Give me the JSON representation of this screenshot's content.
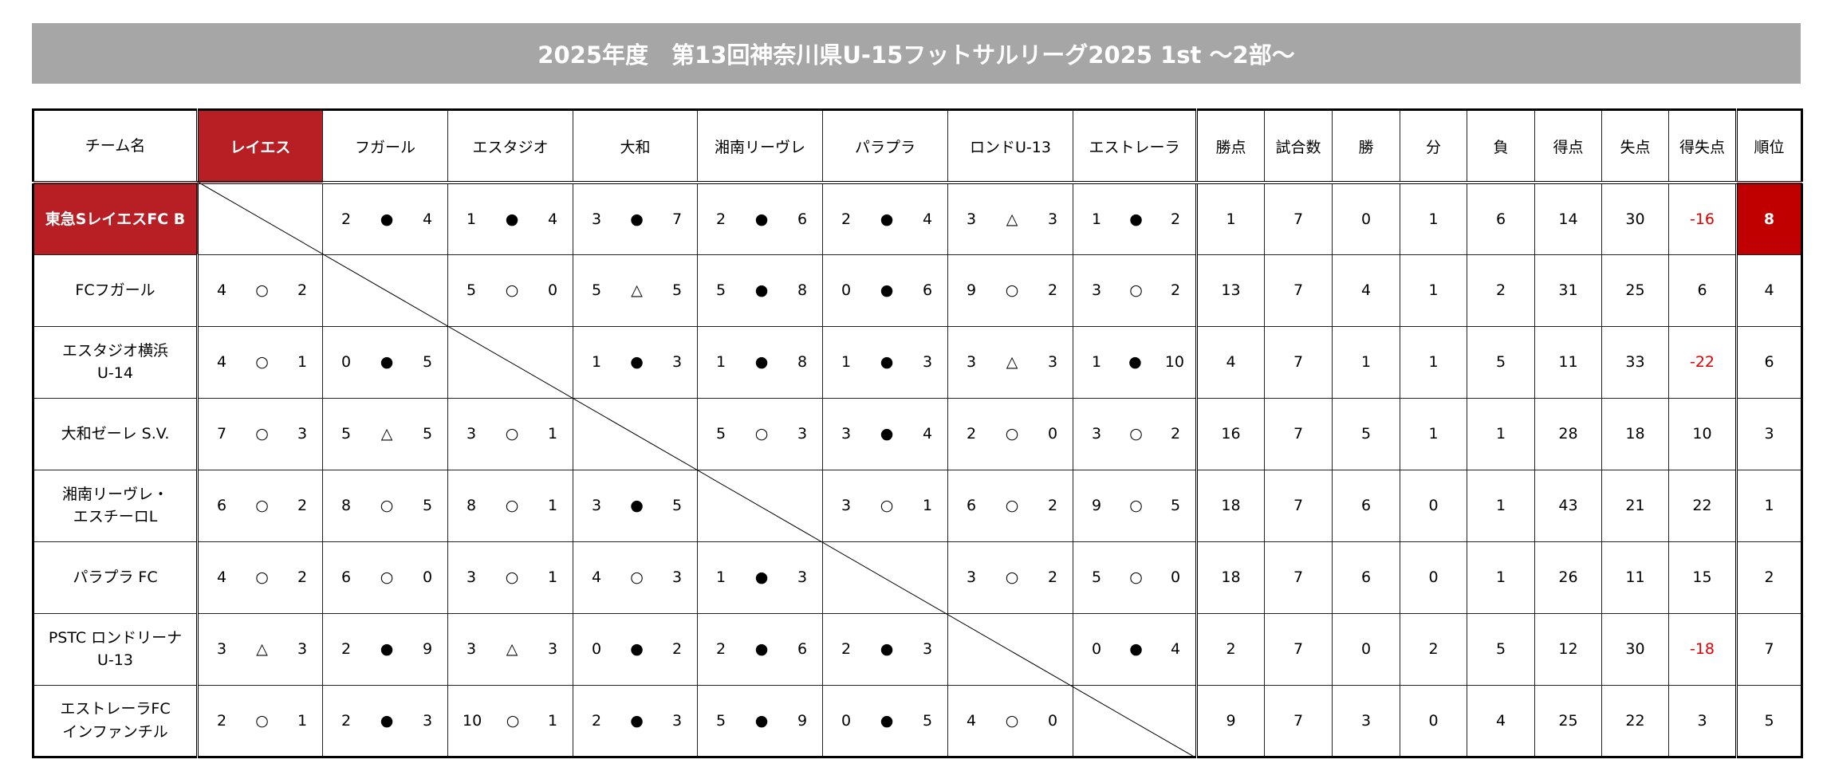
{
  "title": "2025年度　第13回神奈川県U-15フットサルリーグ2025 1st ～2部～",
  "header": {
    "team_label": "チーム名",
    "opponents": [
      "レイエス",
      "フガール",
      "エスタジオ",
      "大和",
      "湘南リーヴレ",
      "パラプラ",
      "ロンドU-13",
      "エストレーラ"
    ],
    "stats": [
      "勝点",
      "試合数",
      "勝",
      "分",
      "負",
      "得点",
      "失点",
      "得失点",
      "順位"
    ]
  },
  "colors": {
    "highlight": "#b81f24",
    "rank_highlight": "#c00000",
    "negative": "#e00000",
    "title_bar": "#a6a6a6"
  },
  "rows": [
    {
      "team": [
        "東急SレイエスFC B"
      ],
      "highlight": true,
      "results": [
        null,
        [
          "2",
          "●",
          "4"
        ],
        [
          "1",
          "●",
          "4"
        ],
        [
          "3",
          "●",
          "7"
        ],
        [
          "2",
          "●",
          "6"
        ],
        [
          "2",
          "●",
          "4"
        ],
        [
          "3",
          "△",
          "3"
        ],
        [
          "1",
          "●",
          "2"
        ]
      ],
      "stats": [
        "1",
        "7",
        "0",
        "1",
        "6",
        "14",
        "30",
        "-16",
        "8"
      ]
    },
    {
      "team": [
        "FCフガール"
      ],
      "results": [
        [
          "4",
          "○",
          "2"
        ],
        null,
        [
          "5",
          "○",
          "0"
        ],
        [
          "5",
          "△",
          "5"
        ],
        [
          "5",
          "●",
          "8"
        ],
        [
          "0",
          "●",
          "6"
        ],
        [
          "9",
          "○",
          "2"
        ],
        [
          "3",
          "○",
          "2"
        ]
      ],
      "stats": [
        "13",
        "7",
        "4",
        "1",
        "2",
        "31",
        "25",
        "6",
        "4"
      ]
    },
    {
      "team": [
        "エスタジオ横浜",
        "U-14"
      ],
      "results": [
        [
          "4",
          "○",
          "1"
        ],
        [
          "0",
          "●",
          "5"
        ],
        null,
        [
          "1",
          "●",
          "3"
        ],
        [
          "1",
          "●",
          "8"
        ],
        [
          "1",
          "●",
          "3"
        ],
        [
          "3",
          "△",
          "3"
        ],
        [
          "1",
          "●",
          "10"
        ]
      ],
      "stats": [
        "4",
        "7",
        "1",
        "1",
        "5",
        "11",
        "33",
        "-22",
        "6"
      ]
    },
    {
      "team": [
        "大和ゼーレ S.V."
      ],
      "results": [
        [
          "7",
          "○",
          "3"
        ],
        [
          "5",
          "△",
          "5"
        ],
        [
          "3",
          "○",
          "1"
        ],
        null,
        [
          "5",
          "○",
          "3"
        ],
        [
          "3",
          "●",
          "4"
        ],
        [
          "2",
          "○",
          "0"
        ],
        [
          "3",
          "○",
          "2"
        ]
      ],
      "stats": [
        "16",
        "7",
        "5",
        "1",
        "1",
        "28",
        "18",
        "10",
        "3"
      ]
    },
    {
      "team": [
        "湘南リーヴレ・",
        "エスチーロL"
      ],
      "results": [
        [
          "6",
          "○",
          "2"
        ],
        [
          "8",
          "○",
          "5"
        ],
        [
          "8",
          "○",
          "1"
        ],
        [
          "3",
          "●",
          "5"
        ],
        null,
        [
          "3",
          "○",
          "1"
        ],
        [
          "6",
          "○",
          "2"
        ],
        [
          "9",
          "○",
          "5"
        ]
      ],
      "stats": [
        "18",
        "7",
        "6",
        "0",
        "1",
        "43",
        "21",
        "22",
        "1"
      ]
    },
    {
      "team": [
        "パラプラ FC"
      ],
      "results": [
        [
          "4",
          "○",
          "2"
        ],
        [
          "6",
          "○",
          "0"
        ],
        [
          "3",
          "○",
          "1"
        ],
        [
          "4",
          "○",
          "3"
        ],
        [
          "1",
          "●",
          "3"
        ],
        null,
        [
          "3",
          "○",
          "2"
        ],
        [
          "5",
          "○",
          "0"
        ]
      ],
      "stats": [
        "18",
        "7",
        "6",
        "0",
        "1",
        "26",
        "11",
        "15",
        "2"
      ]
    },
    {
      "team": [
        "PSTC ロンドリーナ",
        "U-13"
      ],
      "results": [
        [
          "3",
          "△",
          "3"
        ],
        [
          "2",
          "●",
          "9"
        ],
        [
          "3",
          "△",
          "3"
        ],
        [
          "0",
          "●",
          "2"
        ],
        [
          "2",
          "●",
          "6"
        ],
        [
          "2",
          "●",
          "3"
        ],
        null,
        [
          "0",
          "●",
          "4"
        ]
      ],
      "stats": [
        "2",
        "7",
        "0",
        "2",
        "5",
        "12",
        "30",
        "-18",
        "7"
      ]
    },
    {
      "team": [
        "エストレーラFC",
        "インファンチル"
      ],
      "results": [
        [
          "2",
          "○",
          "1"
        ],
        [
          "2",
          "●",
          "3"
        ],
        [
          "10",
          "○",
          "1"
        ],
        [
          "2",
          "●",
          "3"
        ],
        [
          "5",
          "●",
          "9"
        ],
        [
          "0",
          "●",
          "5"
        ],
        [
          "4",
          "○",
          "0"
        ],
        null
      ],
      "stats": [
        "9",
        "7",
        "3",
        "0",
        "4",
        "25",
        "22",
        "3",
        "5"
      ]
    }
  ]
}
